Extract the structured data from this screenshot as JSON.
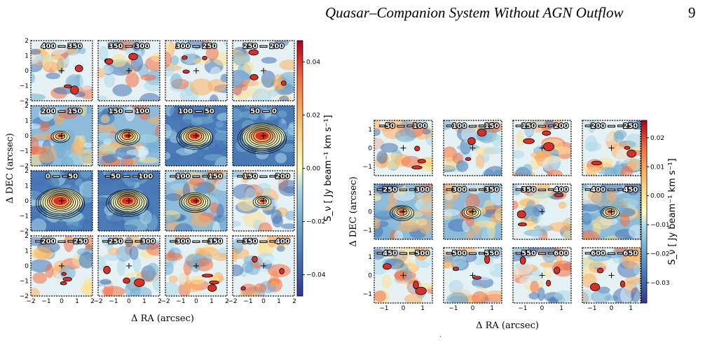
{
  "page": {
    "header": "Quasar–Companion System Without AGN Outflow",
    "page_number": "9",
    "footer_mark": "."
  },
  "figures": [
    {
      "id": "left",
      "grid": [
        4,
        4
      ],
      "xlim": [
        -2,
        2
      ],
      "ylim": [
        -2,
        2
      ],
      "ticks": [
        "−2",
        "−1",
        "0",
        "1",
        "2"
      ],
      "xlabel": "Δ RA (arcsec)",
      "ylabel": "Δ DEC (arcsec)",
      "colorbar_label": "S_ν [ Jy beam⁻¹ km s⁻¹]",
      "colorbar_ticks": [
        "0.04",
        "0.02",
        "0.00",
        "−0.02",
        "−0.04"
      ],
      "colorbar_range": [
        -0.048,
        0.048
      ],
      "panels": [
        "400 — 350",
        "350 — 300",
        "300 — 250",
        "250 — 200",
        "200 — 150",
        "150 — 100",
        "100 — 50",
        "50 — 0",
        "0 — −50",
        "−50 — −100",
        "−100 — −150",
        "−150 — −200",
        "−200 — −250",
        "−250 — −300",
        "−300 — −350",
        "−350 — −400"
      ],
      "panel_emission": [
        0.5,
        0.5,
        0.4,
        0.5,
        1.2,
        1.6,
        2.2,
        3.0,
        3.0,
        2.6,
        2.0,
        1.1,
        0.7,
        0.4,
        0.5,
        0.4
      ]
    },
    {
      "id": "right",
      "grid": [
        3,
        4
      ],
      "xlim": [
        -1.3,
        1.3
      ],
      "ylim": [
        -1.3,
        1.3
      ],
      "ticks": [
        "−1",
        "0",
        "1"
      ],
      "xlabel": "Δ RA (arcsec)",
      "ylabel": "Δ DEC (arcsec)",
      "colorbar_label": "S_ν [ Jy beam⁻¹ km s⁻¹]",
      "colorbar_ticks": [
        "0.02",
        "0.01",
        "0.00",
        "−0.01",
        "−0.02",
        "−0.03"
      ],
      "colorbar_range": [
        -0.037,
        0.026
      ],
      "panels": [
        "−50 — −100",
        "−100 — −150",
        "−150 — −200",
        "−200 — −250",
        "−250 — −300",
        "−300 — −350",
        "−350 — −400",
        "−400 — −450",
        "−450 — −500",
        "−500 — −550",
        "−550 — −600",
        "−600 — −650"
      ],
      "panel_emission": [
        0.5,
        0.6,
        0.5,
        0.8,
        1.4,
        1.3,
        0.9,
        1.2,
        0.6,
        0.5,
        0.5,
        0.6
      ]
    }
  ]
}
